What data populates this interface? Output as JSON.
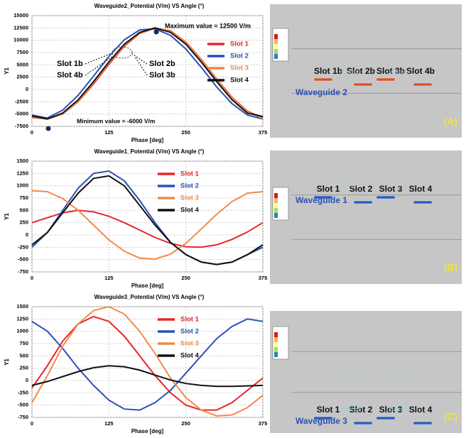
{
  "chart_data": [
    {
      "type": "line",
      "title": "Waveguide2_Potential (V/m) VS Angle (°)",
      "x_label": "Phase [deg]",
      "y_label": "Y1",
      "xlim": [
        0,
        375
      ],
      "xticks": [
        0,
        125,
        250,
        375
      ],
      "ylim": [
        -7500,
        15000
      ],
      "yticks": [
        -7500,
        -5000,
        -2500,
        0,
        2500,
        5000,
        7500,
        10000,
        12500,
        15000
      ],
      "grid": true,
      "x": [
        0,
        25,
        50,
        75,
        100,
        125,
        150,
        175,
        200,
        225,
        250,
        275,
        300,
        325,
        350,
        375
      ],
      "series": [
        {
          "name": "Slot 1",
          "color": "#e8262b",
          "values": [
            -5700,
            -6000,
            -5000,
            -2500,
            1100,
            5100,
            8800,
            11400,
            12450,
            11900,
            9600,
            6100,
            2100,
            -1600,
            -4400,
            -5800
          ]
        },
        {
          "name": "Slot 2",
          "color": "#2a52b5",
          "values": [
            -5200,
            -5800,
            -4200,
            -1200,
            2700,
            6700,
            10100,
            12100,
            12300,
            11000,
            8200,
            4500,
            500,
            -2900,
            -5200,
            -6000
          ]
        },
        {
          "name": "Slot 3",
          "color": "#f28a4a",
          "values": [
            -5600,
            -6000,
            -5000,
            -2400,
            1300,
            5300,
            9000,
            11500,
            12500,
            11800,
            9500,
            6000,
            2000,
            -1700,
            -4500,
            -5900
          ]
        },
        {
          "name": "Slot 4",
          "color": "#111111",
          "values": [
            -5400,
            -6000,
            -4800,
            -2100,
            1600,
            5600,
            9200,
            11600,
            12500,
            11600,
            9200,
            5600,
            1600,
            -2100,
            -4800,
            -5500
          ]
        }
      ],
      "annotations": [
        "Maximum value ≈ 12500 V/m",
        "Minimum value ≈ -6000 V/m",
        "Slot 1b",
        "Slot 4b",
        "Slot 2b",
        "Slot 3b"
      ]
    },
    {
      "type": "line",
      "title": "Waveguide1_Potential (V/m) VS Angle (°)",
      "x_label": "Phase [deg]",
      "y_label": "Y1",
      "xlim": [
        0,
        375
      ],
      "xticks": [
        0,
        125,
        250,
        375
      ],
      "ylim": [
        -750,
        1500
      ],
      "yticks": [
        -750,
        -500,
        -250,
        0,
        250,
        500,
        750,
        1000,
        1250,
        1500
      ],
      "grid": true,
      "x": [
        0,
        25,
        50,
        75,
        100,
        125,
        150,
        175,
        200,
        225,
        250,
        275,
        300,
        325,
        350,
        375
      ],
      "series": [
        {
          "name": "Slot 1",
          "color": "#e8262b",
          "values": [
            250,
            350,
            450,
            500,
            470,
            380,
            250,
            100,
            -50,
            -170,
            -240,
            -250,
            -200,
            -90,
            60,
            250
          ]
        },
        {
          "name": "Slot 2",
          "color": "#2a52b5",
          "values": [
            -250,
            50,
            500,
            950,
            1250,
            1300,
            1100,
            700,
            250,
            -150,
            -400,
            -550,
            -600,
            -550,
            -400,
            -250
          ]
        },
        {
          "name": "Slot 3",
          "color": "#f28a4a",
          "values": [
            900,
            880,
            740,
            500,
            200,
            -100,
            -330,
            -470,
            -490,
            -390,
            -170,
            120,
            420,
            680,
            850,
            880
          ]
        },
        {
          "name": "Slot 4",
          "color": "#111111",
          "values": [
            -200,
            50,
            450,
            850,
            1150,
            1200,
            1000,
            600,
            200,
            -150,
            -400,
            -550,
            -600,
            -550,
            -400,
            -200
          ]
        }
      ]
    },
    {
      "type": "line",
      "title": "Waveguide3_Potential (V/m) VS Angle (°)",
      "x_label": "Phase [deg]",
      "y_label": "Y1",
      "xlim": [
        0,
        375
      ],
      "xticks": [
        0,
        125,
        250,
        375
      ],
      "ylim": [
        -750,
        1500
      ],
      "yticks": [
        -750,
        -500,
        -250,
        0,
        250,
        500,
        750,
        1000,
        1250,
        1500
      ],
      "grid": true,
      "x": [
        0,
        25,
        50,
        75,
        100,
        125,
        150,
        175,
        200,
        225,
        250,
        275,
        300,
        325,
        350,
        375
      ],
      "series": [
        {
          "name": "Slot 1",
          "color": "#e8262b",
          "values": [
            -150,
            300,
            800,
            1150,
            1300,
            1200,
            900,
            500,
            100,
            -250,
            -500,
            -600,
            -600,
            -450,
            -200,
            50
          ]
        },
        {
          "name": "Slot 2",
          "color": "#2a52b5",
          "values": [
            1200,
            1000,
            650,
            250,
            -100,
            -400,
            -580,
            -600,
            -450,
            -200,
            150,
            500,
            850,
            1100,
            1250,
            1200
          ]
        },
        {
          "name": "Slot 3",
          "color": "#f28a4a",
          "values": [
            -450,
            100,
            700,
            1150,
            1420,
            1500,
            1350,
            1000,
            550,
            50,
            -350,
            -600,
            -720,
            -700,
            -550,
            -300
          ]
        },
        {
          "name": "Slot 4",
          "color": "#111111",
          "values": [
            -100,
            -20,
            80,
            180,
            260,
            300,
            280,
            210,
            110,
            10,
            -60,
            -100,
            -120,
            -120,
            -110,
            -100
          ]
        }
      ]
    }
  ],
  "panels": [
    {
      "slots": [
        "Slot 1b",
        "Slot 2b",
        "Slot 3b",
        "Slot 4b"
      ],
      "waveguide": "Waveguide 2",
      "tag": "(A)"
    },
    {
      "slots": [
        "Slot 1",
        "Slot 2",
        "Slot 3",
        "Slot 4"
      ],
      "waveguide": "Waveguide 1",
      "tag": "(B)"
    },
    {
      "slots": [
        "Slot 1",
        "Slot 2",
        "Slot 3",
        "Slot 4"
      ],
      "waveguide": "Waveguide 3",
      "tag": "(C)"
    }
  ]
}
